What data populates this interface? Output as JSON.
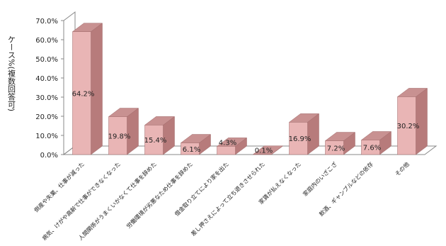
{
  "chart_data": {
    "type": "bar",
    "ylabel": "ケース%(複数回答可)",
    "categories": [
      "倒産や失業、仕事が減った",
      "病気、けがや高齢で仕事ができなくなった",
      "人間関係がうまくいかなくて仕事を辞めた",
      "労働環境が劣悪なため仕事を辞めた",
      "借金取り立てにより家を出た",
      "差し押さえによって立ち退きさせられた",
      "家賃が払えなくなった",
      "家庭内のいざこざ",
      "飲酒、ギャンブルなどの依存",
      "その他"
    ],
    "values": [
      64.2,
      19.8,
      15.4,
      6.1,
      4.3,
      0.1,
      16.9,
      7.2,
      7.6,
      30.2
    ],
    "data_labels": [
      "64.2%",
      "19.8%",
      "15.4%",
      "6.1%",
      "4.3%",
      "0.1%",
      "16.9%",
      "7.2%",
      "7.6%",
      "30.2%"
    ],
    "ylim": [
      0,
      70
    ],
    "yticks": [
      "0.0%",
      "10.0%",
      "20.0%",
      "30.0%",
      "40.0%",
      "50.0%",
      "60.0%",
      "70.0%"
    ],
    "grid": false,
    "bar_color": "#e9b5b5",
    "bar_side_color": "#b77b7b",
    "bar_top_color": "#c89191"
  }
}
